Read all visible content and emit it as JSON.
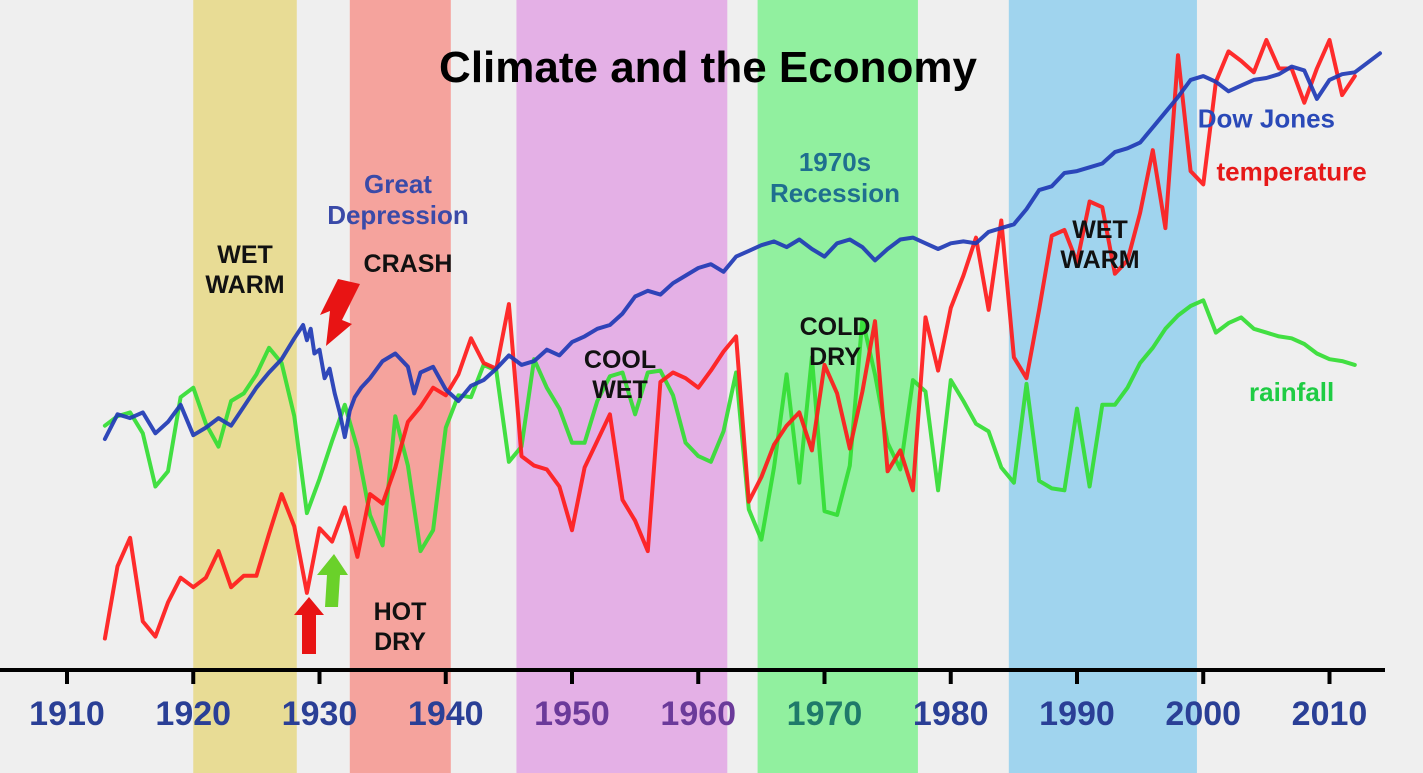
{
  "chart_data": {
    "type": "line",
    "title": "Climate and the Economy",
    "xlabel": "",
    "ylabel": "",
    "xlim": [
      1903,
      2014
    ],
    "grid": false,
    "x_ticks": [
      1910,
      1920,
      1930,
      1940,
      1950,
      1960,
      1970,
      1980,
      1990,
      2000,
      2010
    ],
    "bands": [
      {
        "start": 1920,
        "end": 1928.2,
        "color": "#e8dc95",
        "label": [
          "WET",
          "WARM"
        ]
      },
      {
        "start": 1932.4,
        "end": 1940.4,
        "color": "#f5a39d",
        "label": [
          "HOT",
          "DRY"
        ]
      },
      {
        "start": 1945.6,
        "end": 1962.3,
        "color": "#e4b0e6",
        "label": [
          "COOL",
          "WET"
        ]
      },
      {
        "start": 1964.7,
        "end": 1977.4,
        "color": "#91f09f",
        "label": [
          "COLD",
          "DRY"
        ]
      },
      {
        "start": 1984.6,
        "end": 1999.5,
        "color": "#a0d4ee",
        "label": [
          "WET",
          "WARM"
        ]
      }
    ],
    "annotations": [
      {
        "text": [
          "Great",
          "Depression"
        ],
        "color": "#3a4aa8"
      },
      {
        "text": [
          "CRASH"
        ],
        "color": "#111111"
      },
      {
        "text": [
          "1970s",
          "Recession"
        ],
        "color": "#1f6f8f"
      }
    ],
    "series": [
      {
        "name": "Dow Jones",
        "color": "#1f3ab5",
        "label_color": "#2a49b8",
        "x": [
          1913,
          1914,
          1915,
          1916,
          1917,
          1918,
          1919,
          1920,
          1921,
          1922,
          1923,
          1924,
          1925,
          1926,
          1927,
          1928,
          1928.7,
          1929,
          1929.3,
          1929.6,
          1930,
          1930.4,
          1930.8,
          1931.2,
          1931.6,
          1932,
          1932.4,
          1932.8,
          1933.3,
          1934,
          1935,
          1936,
          1937,
          1937.5,
          1938,
          1939,
          1940,
          1941,
          1942,
          1943,
          1944,
          1945,
          1946,
          1947,
          1948,
          1949,
          1950,
          1951,
          1952,
          1953,
          1954,
          1955,
          1956,
          1957,
          1958,
          1959,
          1960,
          1961,
          1962,
          1963,
          1964,
          1965,
          1966,
          1967,
          1968,
          1969,
          1970,
          1971,
          1972,
          1973,
          1974,
          1975,
          1976,
          1977,
          1978,
          1979,
          1980,
          1981,
          1982,
          1983,
          1984,
          1985,
          1986,
          1987,
          1988,
          1989,
          1990,
          1991,
          1992,
          1993,
          1994,
          1995,
          1996,
          1997,
          1998,
          1999,
          2000,
          2001,
          2002,
          2003,
          2004,
          2005,
          2006,
          2007,
          2008,
          2009,
          2010,
          2011,
          2012,
          2013,
          2014
        ],
        "values": [
          12.0,
          13.3,
          13.1,
          13.4,
          12.3,
          12.9,
          13.8,
          12.2,
          12.6,
          13.1,
          12.7,
          13.7,
          14.7,
          15.5,
          16.2,
          17.3,
          18.0,
          17.2,
          17.8,
          16.5,
          16.7,
          15.2,
          15.7,
          14.4,
          13.4,
          12.1,
          13.5,
          14.2,
          14.7,
          15.2,
          16.1,
          16.5,
          15.8,
          14.4,
          15.5,
          15.8,
          14.6,
          14.0,
          14.8,
          15.1,
          15.7,
          16.4,
          15.9,
          16.1,
          16.7,
          16.4,
          17.1,
          17.4,
          17.8,
          18.0,
          18.6,
          19.5,
          19.8,
          19.6,
          20.2,
          20.6,
          21.0,
          21.2,
          20.8,
          21.6,
          21.9,
          22.2,
          22.4,
          22.1,
          22.5,
          22.0,
          21.6,
          22.3,
          22.5,
          22.1,
          21.4,
          22.0,
          22.5,
          22.6,
          22.3,
          22.0,
          22.3,
          22.4,
          22.3,
          22.9,
          23.1,
          23.3,
          24.1,
          25.1,
          25.3,
          26.0,
          26.1,
          26.3,
          26.5,
          27.1,
          27.3,
          27.6,
          28.4,
          29.2,
          30.0,
          30.9,
          31.1,
          30.8,
          30.3,
          30.6,
          30.9,
          31.0,
          31.2,
          31.6,
          31.4,
          29.9,
          30.9,
          31.2,
          31.3,
          31.8,
          32.3
        ],
        "label_x": 2005,
        "label_y": 28.4
      },
      {
        "name": "temperature",
        "color": "#ff1a1a",
        "label_color": "#e61919",
        "x": [
          1913,
          1914,
          1915,
          1916,
          1917,
          1918,
          1919,
          1920,
          1921,
          1922,
          1923,
          1924,
          1925,
          1926,
          1927,
          1928,
          1929,
          1930,
          1931,
          1932,
          1933,
          1934,
          1935,
          1936,
          1937,
          1938,
          1939,
          1940,
          1941,
          1942,
          1943,
          1944,
          1945,
          1946,
          1947,
          1948,
          1949,
          1950,
          1951,
          1952,
          1953,
          1954,
          1955,
          1956,
          1957,
          1958,
          1959,
          1960,
          1961,
          1962,
          1963,
          1964,
          1965,
          1966,
          1967,
          1968,
          1969,
          1970,
          1971,
          1972,
          1973,
          1974,
          1975,
          1976,
          1977,
          1978,
          1979,
          1980,
          1981,
          1982,
          1983,
          1984,
          1985,
          1986,
          1987,
          1988,
          1989,
          1990,
          1991,
          1992,
          1993,
          1994,
          1995,
          1996,
          1997,
          1998,
          1999,
          2000,
          2001,
          2002,
          2003,
          2004,
          2005,
          2006,
          2007,
          2008,
          2009,
          2010,
          2011,
          2012
        ],
        "values": [
          1.5,
          5.3,
          6.8,
          2.4,
          1.6,
          3.4,
          4.7,
          4.2,
          4.7,
          6.1,
          4.2,
          4.8,
          4.8,
          7.0,
          9.1,
          7.4,
          3.9,
          7.3,
          6.6,
          8.4,
          5.8,
          9.1,
          8.6,
          10.5,
          12.9,
          13.7,
          14.7,
          14.3,
          15.4,
          17.3,
          16.0,
          15.7,
          19.1,
          11.1,
          10.6,
          10.4,
          9.5,
          7.2,
          10.5,
          11.9,
          13.3,
          8.8,
          7.7,
          6.1,
          15.0,
          15.5,
          15.2,
          14.7,
          15.6,
          16.6,
          17.4,
          8.7,
          10.0,
          11.7,
          12.7,
          13.4,
          11.4,
          15.9,
          14.4,
          11.5,
          14.5,
          18.2,
          10.3,
          11.4,
          9.3,
          18.4,
          15.6,
          18.9,
          20.6,
          22.6,
          18.8,
          23.5,
          16.3,
          15.2,
          18.8,
          22.7,
          23.0,
          21.3,
          24.5,
          24.2,
          20.7,
          21.4,
          23.9,
          27.2,
          23.1,
          32.2,
          26.1,
          25.4,
          30.8,
          32.4,
          31.9,
          31.3,
          33.0,
          31.5,
          31.5,
          29.7,
          31.5,
          33.0,
          30.1,
          31.1
        ],
        "label_x": 2007,
        "label_y": 25.6
      },
      {
        "name": "rainfall",
        "color": "#33dd33",
        "label_color": "#1fcc44",
        "x": [
          1913,
          1914,
          1915,
          1916,
          1917,
          1918,
          1919,
          1920,
          1921,
          1922,
          1923,
          1924,
          1925,
          1926,
          1927,
          1928,
          1929,
          1930,
          1931,
          1932,
          1933,
          1934,
          1935,
          1936,
          1937,
          1938,
          1939,
          1940,
          1941,
          1942,
          1943,
          1944,
          1945,
          1946,
          1947,
          1948,
          1949,
          1950,
          1951,
          1952,
          1953,
          1954,
          1955,
          1956,
          1957,
          1958,
          1959,
          1960,
          1961,
          1962,
          1963,
          1964,
          1965,
          1966,
          1967,
          1968,
          1969,
          1970,
          1971,
          1972,
          1973,
          1974,
          1975,
          1976,
          1977,
          1978,
          1979,
          1980,
          1981,
          1982,
          1983,
          1984,
          1985,
          1986,
          1987,
          1988,
          1989,
          1990,
          1991,
          1992,
          1993,
          1994,
          1995,
          1996,
          1997,
          1998,
          1999,
          2000,
          2001,
          2002,
          2003,
          2004,
          2005,
          2006,
          2007,
          2008,
          2009,
          2010,
          2011,
          2012
        ],
        "values": [
          12.7,
          13.2,
          13.4,
          12.3,
          9.5,
          10.3,
          14.2,
          14.7,
          12.8,
          11.6,
          14.0,
          14.4,
          15.4,
          16.8,
          16.0,
          13.2,
          8.1,
          9.9,
          11.9,
          13.8,
          11.5,
          8.0,
          6.4,
          13.2,
          10.6,
          6.1,
          7.2,
          12.6,
          14.3,
          14.2,
          15.9,
          15.6,
          10.8,
          11.6,
          16.2,
          14.7,
          13.6,
          11.8,
          11.8,
          14.0,
          15.3,
          15.5,
          13.3,
          15.5,
          15.6,
          14.3,
          11.8,
          11.1,
          10.8,
          12.4,
          15.5,
          8.3,
          6.7,
          10.5,
          15.4,
          9.7,
          16.3,
          8.2,
          8.0,
          10.6,
          18.3,
          15.4,
          11.8,
          10.4,
          15.1,
          14.5,
          9.3,
          15.1,
          14.0,
          12.8,
          12.4,
          10.5,
          9.7,
          14.9,
          9.8,
          9.4,
          9.3,
          13.6,
          9.5,
          13.8,
          13.8,
          14.7,
          16.0,
          16.8,
          17.8,
          18.5,
          19.0,
          19.3,
          17.6,
          18.1,
          18.4,
          17.8,
          17.6,
          17.4,
          17.3,
          17.0,
          16.5,
          16.2,
          16.1,
          15.9
        ],
        "label_x": 2007,
        "label_y": 14.0
      }
    ]
  }
}
